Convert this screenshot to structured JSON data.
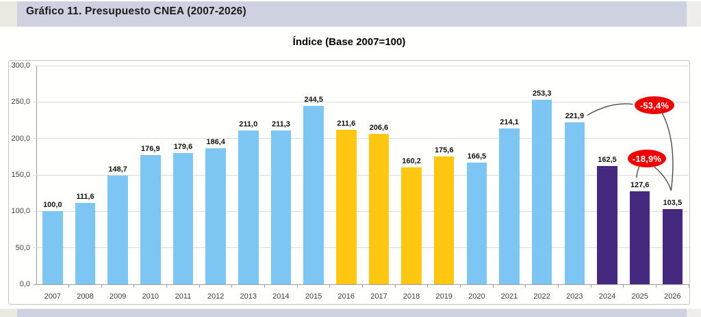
{
  "header": {
    "title": "Gráfico 11. Presupuesto CNEA (2007-2026)"
  },
  "chart_data": {
    "type": "bar",
    "title": "Índice (Base 2007=100)",
    "xlabel": "",
    "ylabel": "",
    "ylim": [
      0,
      300
    ],
    "grid": true,
    "y_tick_labels": [
      "300,0",
      "250,0",
      "200,0",
      "150,0",
      "100,0",
      "50,0",
      "0,0"
    ],
    "colors": {
      "blue": "#7DC5F2",
      "yellow": "#FFC712",
      "purple": "#45297E",
      "annotation": "#EE0000"
    },
    "points": [
      {
        "year": "2007",
        "value": 100.0,
        "label": "100,0",
        "color": "blue"
      },
      {
        "year": "2008",
        "value": 111.6,
        "label": "111,6",
        "color": "blue"
      },
      {
        "year": "2009",
        "value": 148.7,
        "label": "148,7",
        "color": "blue"
      },
      {
        "year": "2010",
        "value": 176.9,
        "label": "176,9",
        "color": "blue"
      },
      {
        "year": "2011",
        "value": 179.6,
        "label": "179,6",
        "color": "blue"
      },
      {
        "year": "2012",
        "value": 186.4,
        "label": "186,4",
        "color": "blue"
      },
      {
        "year": "2013",
        "value": 211.0,
        "label": "211,0",
        "color": "blue"
      },
      {
        "year": "2014",
        "value": 211.3,
        "label": "211,3",
        "color": "blue"
      },
      {
        "year": "2015",
        "value": 244.5,
        "label": "244,5",
        "color": "blue"
      },
      {
        "year": "2016",
        "value": 211.6,
        "label": "211,6",
        "color": "yellow"
      },
      {
        "year": "2017",
        "value": 206.6,
        "label": "206,6",
        "color": "yellow"
      },
      {
        "year": "2018",
        "value": 160.2,
        "label": "160,2",
        "color": "yellow"
      },
      {
        "year": "2019",
        "value": 175.6,
        "label": "175,6",
        "color": "yellow"
      },
      {
        "year": "2020",
        "value": 166.5,
        "label": "166,5",
        "color": "blue"
      },
      {
        "year": "2021",
        "value": 214.1,
        "label": "214,1",
        "color": "blue"
      },
      {
        "year": "2022",
        "value": 253.3,
        "label": "253,3",
        "color": "blue"
      },
      {
        "year": "2023",
        "value": 221.9,
        "label": "221,9",
        "color": "blue"
      },
      {
        "year": "2024",
        "value": 162.5,
        "label": "162,5",
        "color": "purple"
      },
      {
        "year": "2025",
        "value": 127.6,
        "label": "127,6",
        "color": "purple"
      },
      {
        "year": "2026",
        "value": 103.5,
        "label": "103,5",
        "color": "purple"
      }
    ],
    "annotations": [
      {
        "label": "-53,4%",
        "connects": [
          "2023",
          "2026"
        ]
      },
      {
        "label": "-18,9%",
        "connects": [
          "2025",
          "2026"
        ]
      }
    ]
  }
}
